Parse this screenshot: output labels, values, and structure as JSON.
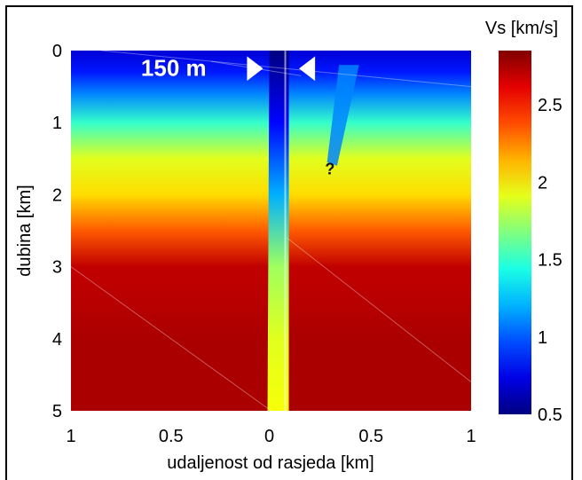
{
  "chart_data": {
    "type": "heatmap",
    "title": "",
    "xlabel": "udaljenost od rasjeda [km]",
    "ylabel": "dubina [km]",
    "x_tick_labels": [
      "1",
      "0.5",
      "0",
      "0.5",
      "1"
    ],
    "x_tick_values": [
      -1,
      -0.5,
      0,
      0.5,
      1
    ],
    "y_tick_labels": [
      "0",
      "1",
      "2",
      "3",
      "4",
      "5"
    ],
    "y_tick_values": [
      0,
      1,
      2,
      3,
      4,
      5
    ],
    "xlim": [
      -1,
      1
    ],
    "ylim": [
      5,
      0
    ],
    "colorbar": {
      "label": "Vs [km/s]",
      "tick_labels": [
        "0.5",
        "1",
        "1.5",
        "2",
        "2.5"
      ],
      "tick_values": [
        0.5,
        1,
        1.5,
        2,
        2.5
      ],
      "range": [
        0.5,
        2.85
      ]
    },
    "velocity_profile_outside_fault": {
      "depth_km": [
        0,
        0.3,
        0.6,
        1.0,
        1.5,
        2.0,
        2.5,
        3.0,
        3.5,
        4.0,
        5.0
      ],
      "vs_km_s": [
        0.7,
        0.85,
        1.1,
        1.5,
        1.9,
        2.05,
        2.35,
        2.7,
        2.72,
        2.75,
        2.75
      ]
    },
    "fault_zone": {
      "width_m": 150,
      "depth_km": [
        0,
        1.0,
        2.0,
        3.0,
        4.0,
        5.0
      ],
      "vs_km_s": [
        0.5,
        0.8,
        1.2,
        1.75,
        1.9,
        1.95
      ]
    },
    "annotations": [
      "150 m",
      "?"
    ],
    "grid": false,
    "colormap": "jet"
  }
}
